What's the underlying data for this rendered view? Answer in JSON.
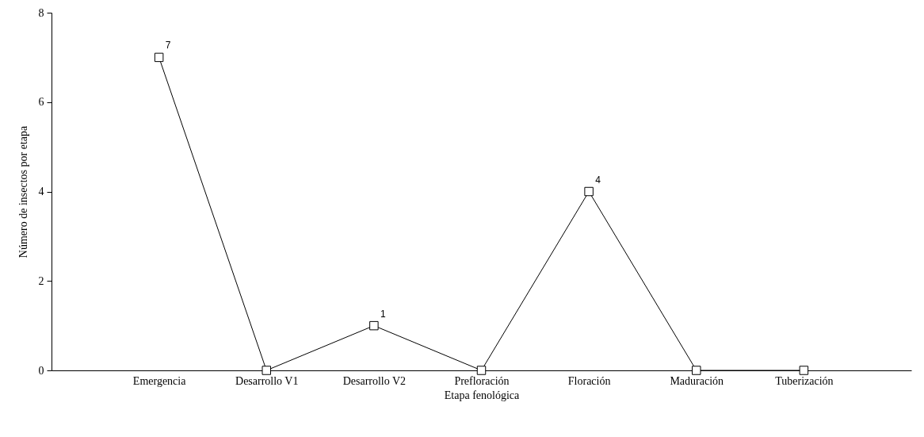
{
  "chart_data": {
    "type": "line",
    "xlabel": "Etapa fenológica",
    "ylabel": "Número de insectos por etapa",
    "categories": [
      "Emergencia",
      "Desarrollo V1",
      "Desarrollo V2",
      "Prefloración",
      "Floración",
      "Maduración",
      "Tuberización"
    ],
    "series": [
      {
        "color": "#000000",
        "values": [
          7,
          0,
          1,
          0,
          4,
          0,
          0
        ],
        "value_labels": [
          "7",
          null,
          "1",
          null,
          "4",
          null,
          null
        ]
      }
    ],
    "ylim": [
      0,
      8
    ],
    "yticks": [
      0,
      2,
      4,
      6,
      8
    ],
    "marker": "square",
    "line_style": "solid",
    "grid": false
  }
}
